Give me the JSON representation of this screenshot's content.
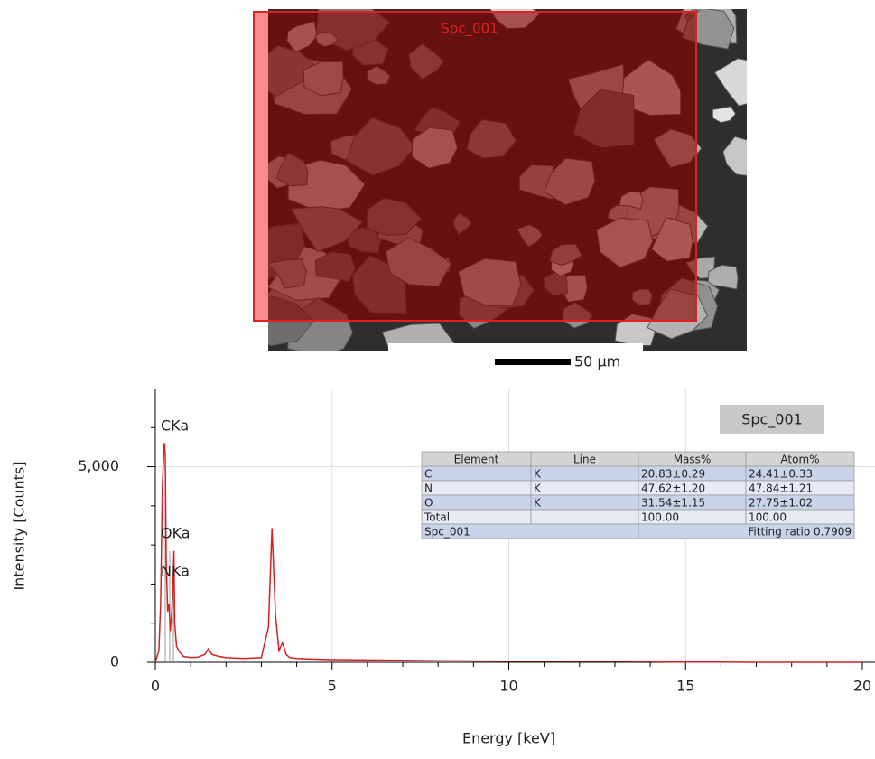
{
  "image": {
    "region_label": "Spc_001",
    "scale_bar": "50 µm"
  },
  "chart_data": {
    "type": "line",
    "label": "Spc_001",
    "x_label": "Energy [keV]",
    "y_label": "Intensity [Counts]",
    "annotations": [
      "CKa",
      "OKa",
      "NKa"
    ],
    "xlim": [
      0,
      20
    ],
    "xticks": [
      0,
      5,
      10,
      15,
      20
    ],
    "xminorticks": [
      1,
      2,
      3,
      4,
      6,
      7,
      8,
      9,
      11,
      12,
      13,
      14,
      16,
      17,
      18,
      19
    ],
    "ylim": [
      0,
      7000
    ],
    "yticks": [
      0,
      {
        "value": 5000,
        "label": "5,000"
      }
    ],
    "yminorticks": [
      1000,
      2000,
      3000,
      4000,
      6000
    ],
    "grid": true,
    "x": [
      0,
      0.1,
      0.15,
      0.2,
      0.25,
      0.28,
      0.31,
      0.35,
      0.39,
      0.42,
      0.46,
      0.5,
      0.525,
      0.55,
      0.6,
      0.7,
      0.8,
      1.0,
      1.2,
      1.4,
      1.5,
      1.6,
      1.8,
      2.0,
      2.5,
      3.0,
      3.2,
      3.3,
      3.4,
      3.5,
      3.6,
      3.7,
      3.8,
      4.0,
      4.5,
      5,
      6,
      7,
      8,
      9,
      10,
      11,
      12,
      13,
      14,
      14.5,
      15,
      16,
      17,
      18,
      19,
      20
    ],
    "series": [
      {
        "name": "Spc_001",
        "color": "#d42020",
        "values": [
          0,
          300,
          1500,
          4500,
          5600,
          5300,
          2500,
          1300,
          1500,
          800,
          1200,
          2000,
          2850,
          1000,
          400,
          250,
          150,
          120,
          130,
          200,
          350,
          200,
          150,
          120,
          100,
          120,
          900,
          3430,
          1200,
          300,
          500,
          200,
          120,
          100,
          80,
          70,
          60,
          50,
          40,
          35,
          30,
          30,
          25,
          25,
          20,
          10,
          5,
          5,
          0,
          0,
          0,
          0
        ]
      }
    ]
  },
  "table": {
    "header": [
      "Element",
      "Line",
      "Mass%",
      "Atom%"
    ],
    "rows": [
      [
        "C",
        "K",
        "20.83±0.29",
        "24.41±0.33"
      ],
      [
        "N",
        "K",
        "47.62±1.20",
        "47.84±1.21"
      ],
      [
        "O",
        "K",
        "31.54±1.15",
        "27.75±1.02"
      ],
      [
        "Total",
        null,
        "100.00",
        "100.00"
      ]
    ],
    "footer": [
      "Spc_001",
      "Fitting ratio 0.7909"
    ]
  }
}
